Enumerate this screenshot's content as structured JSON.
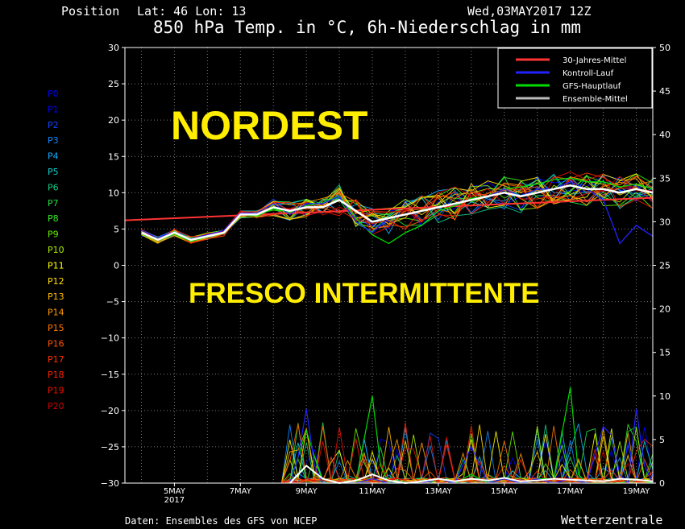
{
  "header": {
    "position_label": "Position",
    "lat_lon": "Lat: 46 Lon: 13",
    "run_date": "Wed,03MAY2017 12Z",
    "title": "850 hPa Temp. in °C, 6h-Niederschlag in mm"
  },
  "overlay": {
    "line1": "NORDEST",
    "line2": "FRESCO INTERMITTENTE"
  },
  "footer": {
    "source": "Daten: Ensembles des GFS von NCEP",
    "brand": "Wetterzentrale"
  },
  "member_labels": [
    "P0",
    "P1",
    "P2",
    "P3",
    "P4",
    "P5",
    "P6",
    "P7",
    "P8",
    "P9",
    "P10",
    "P11",
    "P12",
    "P13",
    "P14",
    "P15",
    "P16",
    "P17",
    "P18",
    "P19",
    "P20"
  ],
  "member_colors": [
    "#0000ff",
    "#0000ff",
    "#1144ff",
    "#1188ff",
    "#11aaff",
    "#11cccc",
    "#11cc88",
    "#22dd44",
    "#33ee22",
    "#66ee00",
    "#aaee00",
    "#ffff00",
    "#ffdd00",
    "#ffbb00",
    "#ff9900",
    "#ff7700",
    "#ff5500",
    "#ff3300",
    "#ff2200",
    "#ee1100",
    "#cc0000"
  ],
  "chart_data": {
    "type": "line",
    "title": "850 hPa Temp. in °C, 6h-Niederschlag in mm",
    "x_tick_labels": [
      "5MAY\n2017",
      "7MAY",
      "9MAY",
      "11MAY",
      "13MAY",
      "15MAY",
      "17MAY",
      "19MAY"
    ],
    "x_tick_days": [
      5,
      7,
      9,
      11,
      13,
      15,
      17,
      19
    ],
    "x_range_days": [
      3.5,
      19.5
    ],
    "y_left_range": [
      -30,
      30
    ],
    "y_left_ticks": [
      30,
      25,
      20,
      15,
      10,
      5,
      0,
      -5,
      -10,
      -15,
      -20,
      -25,
      -30
    ],
    "y_right_range": [
      0,
      50
    ],
    "y_right_ticks": [
      50,
      45,
      40,
      35,
      30,
      25,
      20,
      15,
      10,
      5,
      0
    ],
    "grid": true,
    "legend_position": "top-right",
    "legend": [
      {
        "name": "30-Jahres-Mittel",
        "color": "#ff3333"
      },
      {
        "name": "Kontroll-Lauf",
        "color": "#2222ff"
      },
      {
        "name": "GFS-Hauptlauf",
        "color": "#00dd00"
      },
      {
        "name": "Ensemble-Mittel",
        "color": "#bbbbbb"
      }
    ],
    "climate_mean": {
      "x": [
        3.5,
        19.5
      ],
      "y": [
        6.2,
        9.3
      ]
    },
    "ensemble_mean": {
      "x": [
        4,
        4.5,
        5,
        5.5,
        6,
        6.5,
        7,
        7.5,
        8,
        8.5,
        9,
        9.5,
        10,
        10.5,
        11,
        11.5,
        12,
        12.5,
        13,
        13.5,
        14,
        14.5,
        15,
        15.5,
        16,
        16.5,
        17,
        17.5,
        18,
        18.5,
        19,
        19.5
      ],
      "y": [
        4.5,
        3.5,
        4.5,
        3.5,
        4,
        4.5,
        7,
        7,
        8,
        7.5,
        8,
        8,
        9,
        7.5,
        6,
        6.5,
        7,
        7.5,
        8,
        8.5,
        9,
        9.5,
        10,
        9.5,
        10,
        10.5,
        11,
        10.5,
        10.5,
        10,
        10.5,
        10
      ]
    },
    "control_run": {
      "x": [
        4,
        4.5,
        5,
        5.5,
        6,
        6.5,
        7,
        7.5,
        8,
        8.5,
        9,
        9.5,
        10,
        10.5,
        11,
        11.5,
        12,
        12.5,
        13,
        13.5,
        14,
        14.5,
        15,
        15.5,
        16,
        16.5,
        17,
        17.5,
        18,
        18.5,
        19,
        19.5
      ],
      "y": [
        4.8,
        3.8,
        4.6,
        3.6,
        4.2,
        4.8,
        7.2,
        7.2,
        8.5,
        7,
        8.5,
        8.5,
        9.5,
        6,
        4.5,
        6.5,
        7,
        7.5,
        8,
        8.5,
        9,
        9.5,
        10.5,
        9.5,
        10.5,
        10.5,
        11.5,
        10.5,
        9,
        3,
        5.5,
        4
      ]
    },
    "main_run": {
      "x": [
        4,
        4.5,
        5,
        5.5,
        6,
        6.5,
        7,
        7.5,
        8,
        8.5,
        9,
        9.5,
        10,
        10.5,
        11,
        11.5,
        12,
        12.5,
        13,
        13.5,
        14,
        14.5,
        15,
        15.5,
        16,
        16.5,
        17,
        17.5,
        18,
        18.5,
        19,
        19.5
      ],
      "y": [
        4.4,
        3.4,
        4.3,
        3.3,
        3.9,
        4.4,
        7,
        6.8,
        7.8,
        7.3,
        8.2,
        8.6,
        9.6,
        6.5,
        4.2,
        3,
        4.5,
        5.5,
        7.5,
        8.2,
        9.2,
        9.5,
        10.5,
        10.8,
        11.2,
        11.8,
        12,
        11.5,
        11.5,
        10.8,
        11.2,
        10.5
      ]
    },
    "precip_mean_mm": {
      "x": [
        8.5,
        9,
        9.5,
        10,
        10.5,
        11,
        11.5,
        12,
        12.5,
        13,
        13.5,
        14,
        14.5,
        15,
        15.5,
        16,
        16.5,
        17,
        17.5,
        18,
        18.5,
        19,
        19.5
      ],
      "y": [
        0,
        2,
        0.5,
        0,
        0.3,
        1,
        0.3,
        0,
        0.2,
        0.5,
        0.2,
        0.5,
        0.3,
        0.6,
        0.2,
        0.3,
        0.5,
        0.4,
        0.3,
        0.2,
        0.5,
        0.4,
        0.2
      ]
    },
    "precip_control_mm": {
      "x": [
        8.5,
        8.75,
        9,
        9.25,
        9.5,
        10,
        10.5,
        11,
        11.5,
        12,
        12.5,
        13,
        13.5,
        14,
        14.5,
        15,
        15.5,
        16,
        16.5,
        17,
        17.5,
        18,
        18.25,
        18.5,
        18.75,
        19,
        19.25,
        19.5
      ],
      "y": [
        0,
        3,
        8.5,
        2,
        0,
        0,
        0,
        0.5,
        0,
        0,
        0,
        0.5,
        0,
        4.2,
        0,
        0.5,
        0,
        0.5,
        0,
        0.5,
        0,
        6.5,
        5.5,
        1,
        0,
        8.5,
        2,
        0
      ]
    },
    "precip_main_mm": {
      "x": [
        8.5,
        9,
        9.25,
        9.5,
        10,
        10.5,
        11,
        11.25,
        11.5,
        12,
        12.5,
        13,
        13.5,
        14,
        14.5,
        15,
        15.5,
        16,
        16.5,
        17,
        17.25,
        17.5,
        18,
        18.5,
        19,
        19.5
      ],
      "y": [
        0,
        6,
        3,
        0,
        0,
        0,
        10,
        2,
        0,
        0,
        0,
        0.5,
        0,
        1,
        0,
        0.5,
        0,
        0.5,
        0.5,
        11,
        1,
        0,
        0,
        0,
        0.5,
        0
      ]
    }
  }
}
